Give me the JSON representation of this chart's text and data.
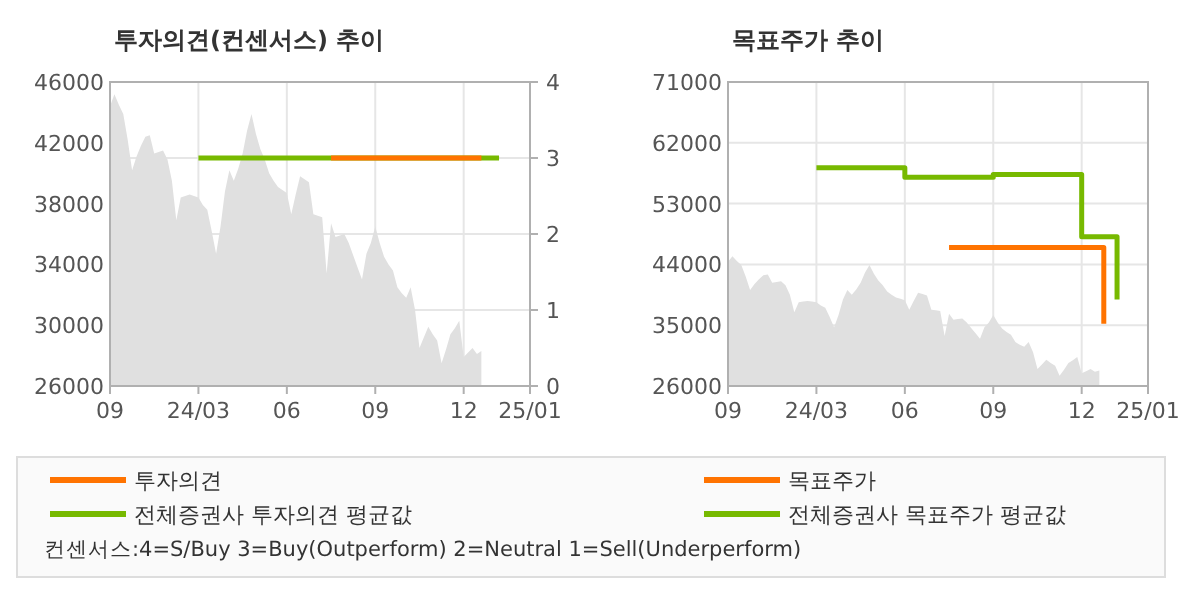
{
  "chart_data": [
    {
      "type": "line",
      "title": "투자의견(컨센서스) 추이",
      "categories": [
        "09",
        null,
        null,
        null,
        null,
        null,
        null,
        null,
        null,
        null,
        null,
        null,
        null,
        null,
        null,
        null,
        null,
        null,
        null,
        null,
        "24/03",
        null,
        null,
        null,
        null,
        null,
        null,
        null,
        null,
        null,
        null,
        null,
        null,
        null,
        null,
        null,
        null,
        null,
        null,
        null,
        "06",
        null,
        null,
        null,
        null,
        null,
        null,
        null,
        null,
        null,
        null,
        null,
        null,
        null,
        null,
        null,
        null,
        null,
        null,
        null,
        "09",
        null,
        null,
        null,
        null,
        null,
        null,
        null,
        null,
        null,
        null,
        null,
        null,
        null,
        null,
        null,
        null,
        null,
        null,
        null,
        "12",
        null,
        null,
        null,
        null,
        null,
        null,
        null,
        null,
        null,
        null,
        null,
        null,
        null,
        null,
        "25/01"
      ],
      "ylim": [
        26000,
        46000
      ],
      "yticks": [
        26000,
        30000,
        34000,
        38000,
        42000,
        46000
      ],
      "y2lim": [
        0,
        4
      ],
      "y2ticks": [
        0,
        1,
        2,
        3,
        4
      ],
      "grid": true,
      "legend": "bottom",
      "annotations": [
        "컨센서스:4=S/Buy    3=Buy(Outperform)  2=Neutral   1=Sell(Underperform)"
      ],
      "series": [
        {
          "type": "area",
          "color": "#e0e0e0",
          "values": [
            44400,
            45200,
            44500,
            43900,
            42200,
            40200,
            41100,
            41800,
            42400,
            42500,
            41300,
            41400,
            41500,
            40900,
            39500,
            36900,
            38400,
            38500,
            38600,
            38500,
            38400,
            37900,
            37600,
            36200,
            34700,
            36500,
            38800,
            40200,
            39500,
            40300,
            41300,
            42800,
            43900,
            42600,
            41600,
            40900,
            40000,
            39500,
            39100,
            38900,
            38700,
            37300,
            38600,
            39800,
            39600,
            39400,
            37300,
            37200,
            37100,
            33400,
            36700,
            35800,
            35900,
            36000,
            35400,
            34600,
            33800,
            33000,
            34700,
            35400,
            36500,
            35400,
            34500,
            34000,
            33600,
            32500,
            32100,
            31800,
            32500,
            31000,
            28500,
            29200,
            29900,
            29400,
            29000,
            27500,
            28400,
            29400,
            29800,
            30300,
            27900,
            28200,
            28500,
            28100,
            28300,
            null,
            null,
            null,
            null,
            null,
            null,
            null,
            null,
            null,
            null,
            null
          ]
        },
        {
          "name": "투자의견",
          "axis": "y2",
          "color": "#ff7300",
          "values": [
            null,
            null,
            null,
            null,
            null,
            null,
            null,
            null,
            null,
            null,
            null,
            null,
            null,
            null,
            null,
            null,
            null,
            null,
            null,
            null,
            null,
            null,
            null,
            null,
            null,
            null,
            null,
            null,
            null,
            null,
            null,
            null,
            null,
            null,
            null,
            null,
            null,
            null,
            null,
            null,
            null,
            null,
            null,
            null,
            null,
            null,
            null,
            null,
            null,
            null,
            3,
            3,
            3,
            3,
            3,
            3,
            3,
            3,
            3,
            3,
            3,
            3,
            3,
            3,
            3,
            3,
            3,
            3,
            3,
            3,
            3,
            3,
            3,
            3,
            3,
            3,
            3,
            3,
            3,
            3,
            3,
            3,
            3,
            3,
            3,
            null,
            null,
            null,
            null,
            null,
            null,
            null,
            null,
            null,
            null,
            null
          ]
        },
        {
          "name": "전체증권사 투자의견 평균값",
          "axis": "y2",
          "color": "#77b900",
          "values": [
            null,
            null,
            null,
            null,
            null,
            null,
            null,
            null,
            null,
            null,
            null,
            null,
            null,
            null,
            null,
            null,
            null,
            null,
            null,
            null,
            3,
            3,
            3,
            3,
            3,
            3,
            3,
            3,
            3,
            3,
            3,
            3,
            3,
            3,
            3,
            3,
            3,
            3,
            3,
            3,
            3,
            3,
            3,
            3,
            3,
            3,
            3,
            3,
            3,
            3,
            3,
            3,
            3,
            3,
            3,
            3,
            3,
            3,
            3,
            3,
            3,
            3,
            3,
            3,
            3,
            3,
            3,
            3,
            3,
            3,
            3,
            3,
            3,
            3,
            3,
            3,
            3,
            3,
            3,
            3,
            3,
            3,
            3,
            3,
            3,
            3,
            3,
            3,
            3,
            null,
            null,
            null,
            null,
            null,
            null,
            null
          ]
        }
      ]
    },
    {
      "type": "step",
      "title": "목표주가 추이",
      "categories": [
        "09",
        null,
        null,
        null,
        null,
        null,
        null,
        null,
        null,
        null,
        null,
        null,
        null,
        null,
        null,
        null,
        null,
        null,
        null,
        null,
        "24/03",
        null,
        null,
        null,
        null,
        null,
        null,
        null,
        null,
        null,
        null,
        null,
        null,
        null,
        null,
        null,
        null,
        null,
        null,
        null,
        "06",
        null,
        null,
        null,
        null,
        null,
        null,
        null,
        null,
        null,
        null,
        null,
        null,
        null,
        null,
        null,
        null,
        null,
        null,
        null,
        "09",
        null,
        null,
        null,
        null,
        null,
        null,
        null,
        null,
        null,
        null,
        null,
        null,
        null,
        null,
        null,
        null,
        null,
        null,
        null,
        "12",
        null,
        null,
        null,
        null,
        null,
        null,
        null,
        null,
        null,
        null,
        null,
        null,
        null,
        null,
        "25/01"
      ],
      "ylim": [
        26000,
        71000
      ],
      "yticks": [
        26000,
        35000,
        44000,
        53000,
        62000,
        71000
      ],
      "grid": true,
      "legend": "bottom",
      "series": [
        {
          "type": "area",
          "color": "#e0e0e0",
          "values": [
            44400,
            45200,
            44500,
            43900,
            42200,
            40200,
            41100,
            41800,
            42400,
            42500,
            41300,
            41400,
            41500,
            40900,
            39500,
            36900,
            38400,
            38500,
            38600,
            38500,
            38400,
            37900,
            37600,
            36200,
            34700,
            36500,
            38800,
            40200,
            39500,
            40300,
            41300,
            42800,
            43900,
            42600,
            41600,
            40900,
            40000,
            39500,
            39100,
            38900,
            38700,
            37300,
            38600,
            39800,
            39600,
            39400,
            37300,
            37200,
            37100,
            33400,
            36700,
            35800,
            35900,
            36000,
            35400,
            34600,
            33800,
            33000,
            34700,
            35400,
            36500,
            35400,
            34500,
            34000,
            33600,
            32500,
            32100,
            31800,
            32500,
            31000,
            28500,
            29200,
            29900,
            29400,
            29000,
            27500,
            28400,
            29400,
            29800,
            30300,
            27900,
            28200,
            28500,
            28100,
            28300,
            null,
            null,
            null,
            null,
            null,
            null,
            null,
            null,
            null,
            null,
            null
          ]
        },
        {
          "name": "목표주가",
          "color": "#ff7300",
          "values": [
            null,
            null,
            null,
            null,
            null,
            null,
            null,
            null,
            null,
            null,
            null,
            null,
            null,
            null,
            null,
            null,
            null,
            null,
            null,
            null,
            null,
            null,
            null,
            null,
            null,
            null,
            null,
            null,
            null,
            null,
            null,
            null,
            null,
            null,
            null,
            null,
            null,
            null,
            null,
            null,
            null,
            null,
            null,
            null,
            null,
            null,
            null,
            null,
            null,
            null,
            46500,
            46500,
            46500,
            46500,
            46500,
            46500,
            46500,
            46500,
            46500,
            46500,
            46500,
            46500,
            46500,
            46500,
            46500,
            46500,
            46500,
            46500,
            46500,
            46500,
            46500,
            46500,
            46500,
            46500,
            46500,
            46500,
            46500,
            46500,
            46500,
            46500,
            46500,
            46500,
            46500,
            46500,
            46500,
            35200,
            null,
            null,
            null,
            null,
            null,
            null,
            null,
            null,
            null,
            null
          ]
        },
        {
          "name": "전체증권사 목표주가 평균값",
          "color": "#77b900",
          "values": [
            null,
            null,
            null,
            null,
            null,
            null,
            null,
            null,
            null,
            null,
            null,
            null,
            null,
            null,
            null,
            null,
            null,
            null,
            null,
            null,
            58300,
            58300,
            58300,
            58300,
            58300,
            58300,
            58300,
            58300,
            58300,
            58300,
            58300,
            58300,
            58300,
            58300,
            58300,
            58300,
            58300,
            58300,
            58300,
            58300,
            56900,
            56900,
            56900,
            56900,
            56900,
            56900,
            56900,
            56900,
            56900,
            56900,
            56900,
            56900,
            56900,
            56900,
            56900,
            56900,
            56900,
            56900,
            56900,
            56900,
            57300,
            57300,
            57300,
            57300,
            57300,
            57300,
            57300,
            57300,
            57300,
            57300,
            57300,
            57300,
            57300,
            57300,
            57300,
            57300,
            57300,
            57300,
            57300,
            57300,
            48100,
            48100,
            48100,
            48100,
            48100,
            48100,
            48100,
            48100,
            38800,
            null,
            null,
            null,
            null,
            null,
            null,
            null
          ]
        }
      ]
    }
  ]
}
